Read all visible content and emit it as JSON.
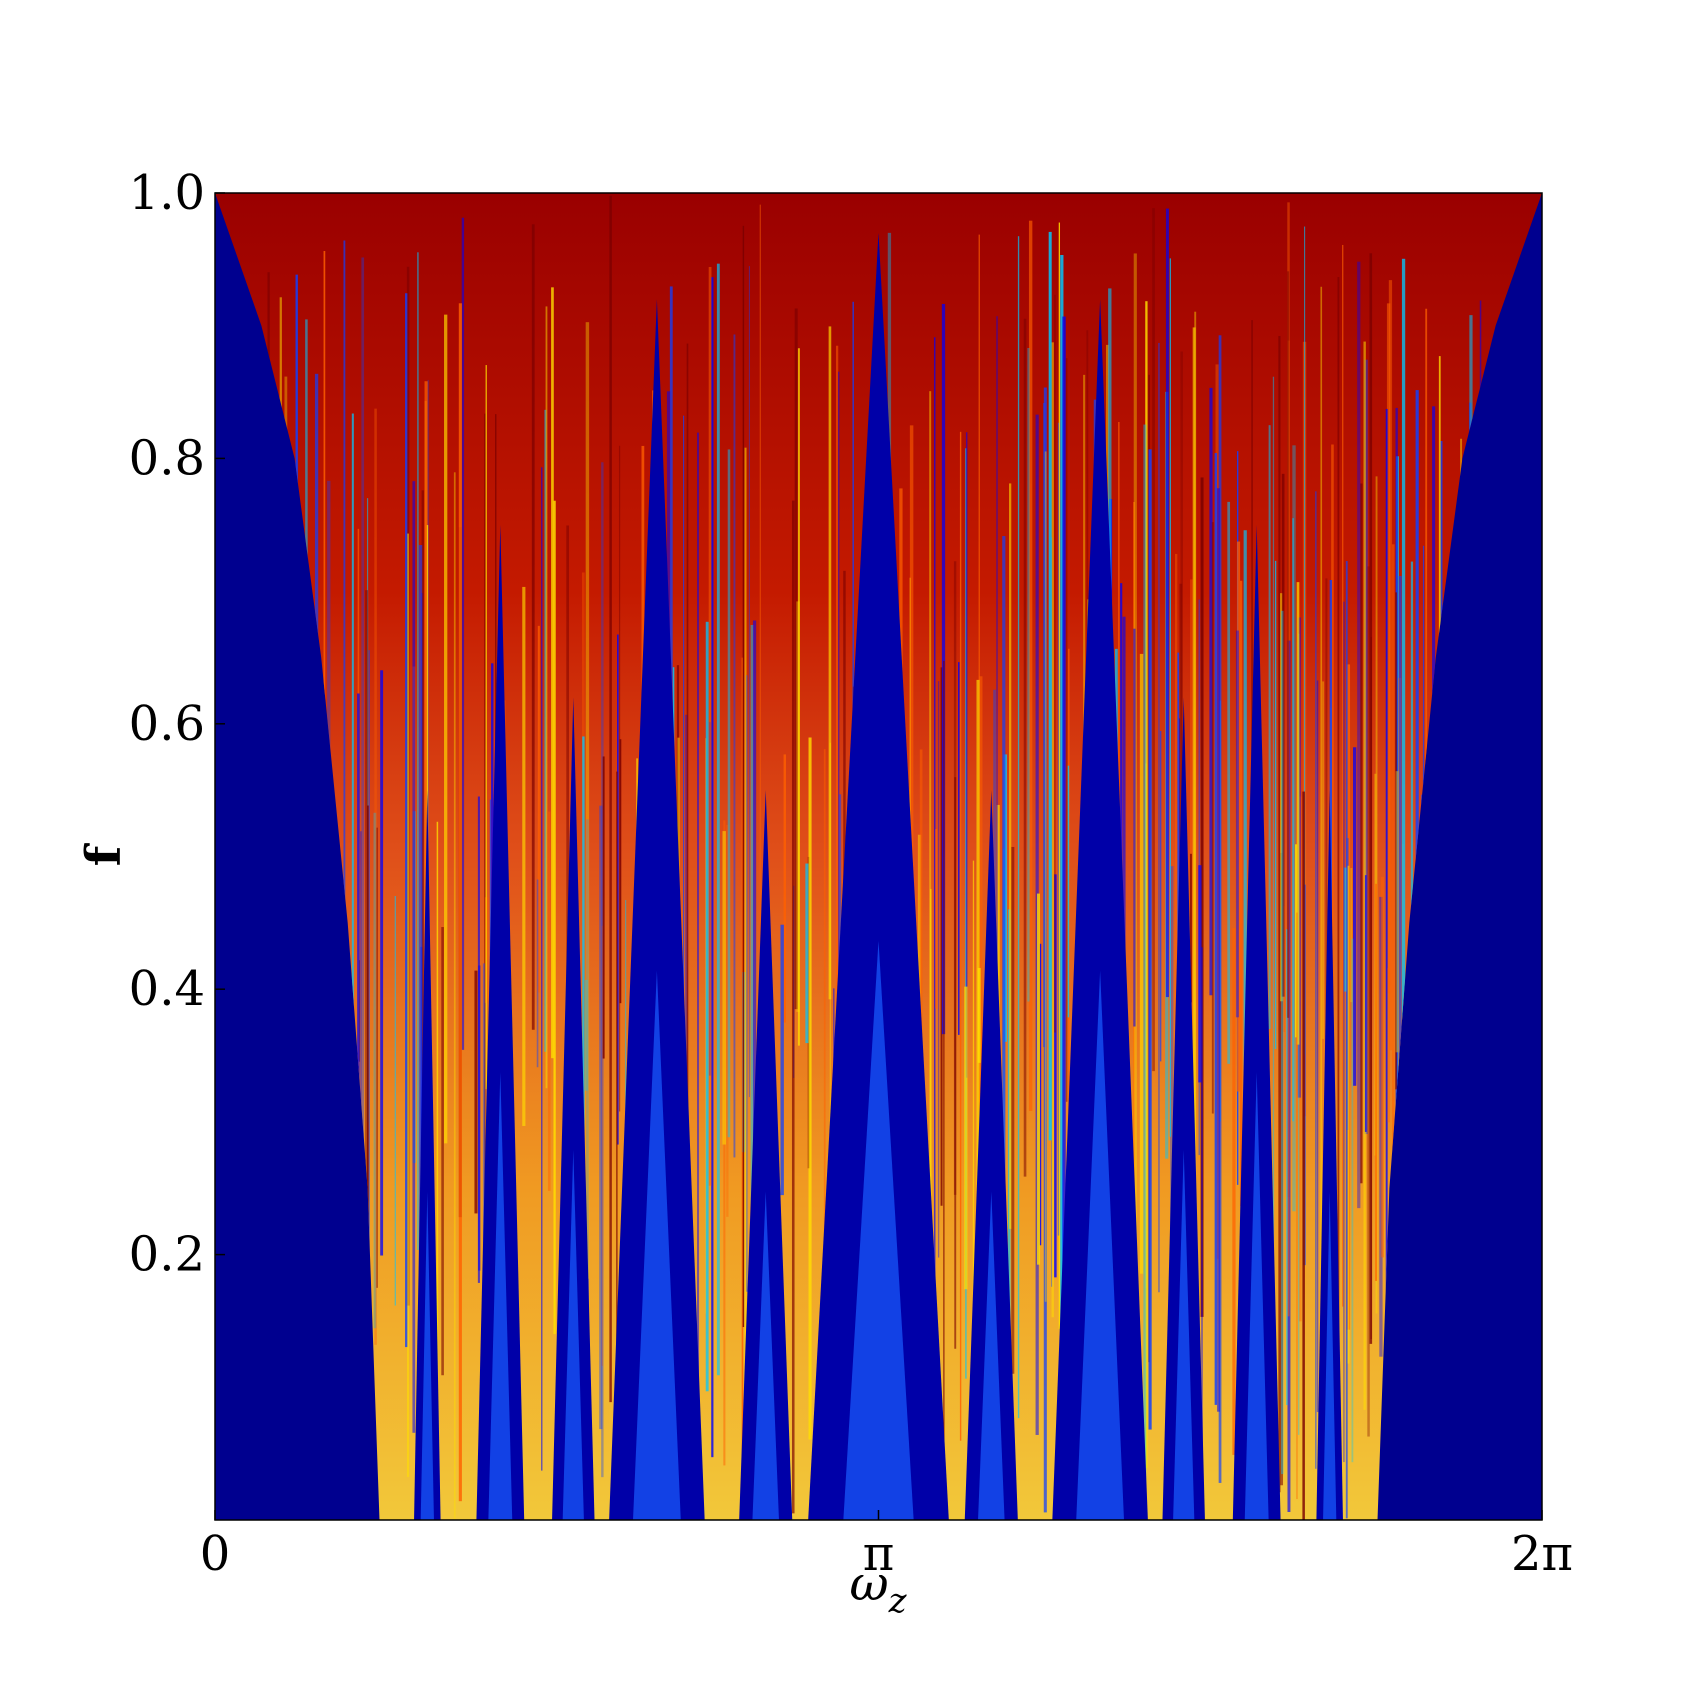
{
  "chart_data": {
    "type": "heatmap",
    "xlabel": "ωz",
    "ylabel": "f",
    "xlim": [
      0,
      6.283185
    ],
    "xticks": [
      0,
      {
        "value": 3.141593,
        "label": "π"
      },
      {
        "value": 6.283185,
        "label": "2π"
      }
    ],
    "ylim": [
      0,
      1
    ],
    "yticks": [
      0.2,
      0.4,
      0.6,
      0.8,
      {
        "value": 1,
        "label": "1.0"
      }
    ]
  }
}
